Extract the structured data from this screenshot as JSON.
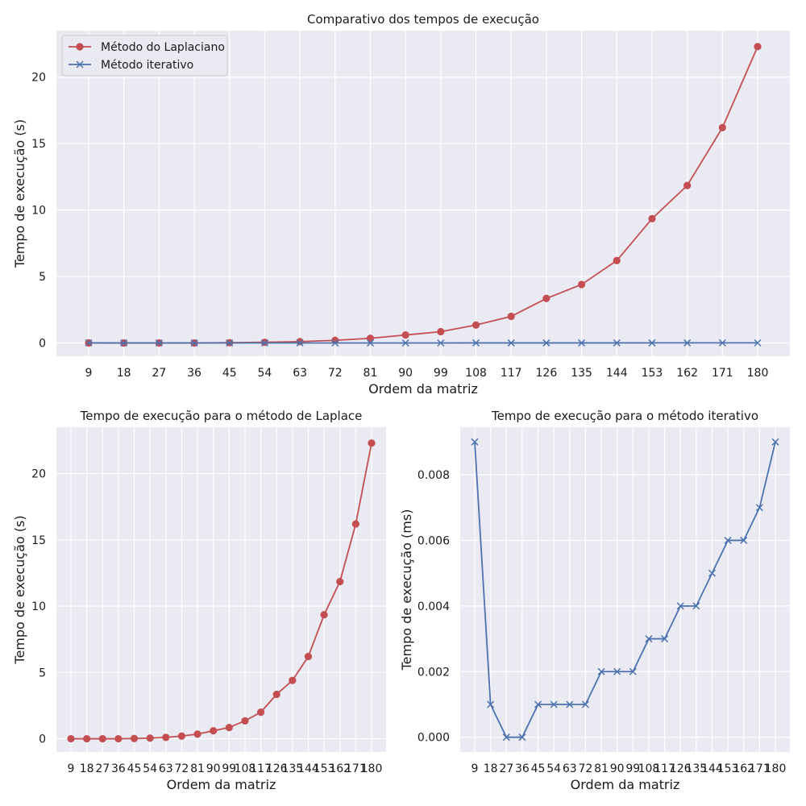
{
  "chart_data": [
    {
      "type": "line",
      "title": "Comparativo dos tempos de execução",
      "xlabel": "Ordem da matriz",
      "ylabel": "Tempo de execução (s)",
      "categories": [
        "9",
        "18",
        "27",
        "36",
        "45",
        "54",
        "63",
        "72",
        "81",
        "90",
        "99",
        "108",
        "117",
        "126",
        "135",
        "144",
        "153",
        "162",
        "171",
        "180"
      ],
      "ylim": [
        -1.0,
        23.5
      ],
      "yticks": [
        0,
        5,
        10,
        15,
        20
      ],
      "ytick_labels": [
        "0",
        "5",
        "10",
        "15",
        "20"
      ],
      "grid": true,
      "legend_position": "top-left",
      "series": [
        {
          "name": "Método do Laplaciano",
          "color": "#c44e52",
          "marker": "circle",
          "values": [
            0.0,
            0.0,
            0.0,
            0.0,
            0.02,
            0.05,
            0.1,
            0.2,
            0.35,
            0.6,
            0.85,
            1.35,
            2.0,
            3.35,
            4.4,
            6.2,
            9.35,
            11.85,
            16.2,
            22.3
          ]
        },
        {
          "name": "Método iterativo",
          "color": "#4c72b0",
          "marker": "x",
          "values": [
            0.009,
            0.001,
            0.0,
            0.0,
            0.001,
            0.001,
            0.001,
            0.001,
            0.002,
            0.002,
            0.002,
            0.003,
            0.003,
            0.004,
            0.004,
            0.005,
            0.006,
            0.006,
            0.007,
            0.009
          ]
        }
      ]
    },
    {
      "type": "line",
      "title": "Tempo de execução para o método de Laplace",
      "xlabel": "Ordem da matriz",
      "ylabel": "Tempo de execução (s)",
      "categories": [
        "9",
        "18",
        "27",
        "36",
        "45",
        "54",
        "63",
        "72",
        "81",
        "90",
        "99",
        "108",
        "117",
        "126",
        "135",
        "144",
        "153",
        "162",
        "171",
        "180"
      ],
      "ylim": [
        -1.0,
        23.5
      ],
      "yticks": [
        0,
        5,
        10,
        15,
        20
      ],
      "ytick_labels": [
        "0",
        "5",
        "10",
        "15",
        "20"
      ],
      "grid": true,
      "series": [
        {
          "color": "#c44e52",
          "marker": "circle",
          "values": [
            0.0,
            0.0,
            0.0,
            0.0,
            0.02,
            0.05,
            0.1,
            0.2,
            0.35,
            0.6,
            0.85,
            1.35,
            2.0,
            3.35,
            4.4,
            6.2,
            9.35,
            11.85,
            16.2,
            22.3
          ]
        }
      ]
    },
    {
      "type": "line",
      "title": "Tempo de execução para o método iterativo",
      "xlabel": "Ordem da matriz",
      "ylabel": "Tempo de execução (ms)",
      "categories": [
        "9",
        "18",
        "27",
        "36",
        "45",
        "54",
        "63",
        "72",
        "81",
        "90",
        "99",
        "108",
        "117",
        "126",
        "135",
        "144",
        "153",
        "162",
        "171",
        "180"
      ],
      "ylim": [
        -0.00045,
        0.00945
      ],
      "yticks": [
        0,
        0.002,
        0.004,
        0.006,
        0.008
      ],
      "ytick_labels": [
        "0.000",
        "0.002",
        "0.004",
        "0.006",
        "0.008"
      ],
      "grid": true,
      "series": [
        {
          "color": "#4c72b0",
          "marker": "x",
          "values": [
            0.009,
            0.001,
            0.0,
            0.0,
            0.001,
            0.001,
            0.001,
            0.001,
            0.002,
            0.002,
            0.002,
            0.003,
            0.003,
            0.004,
            0.004,
            0.005,
            0.006,
            0.006,
            0.007,
            0.009
          ]
        }
      ]
    }
  ]
}
